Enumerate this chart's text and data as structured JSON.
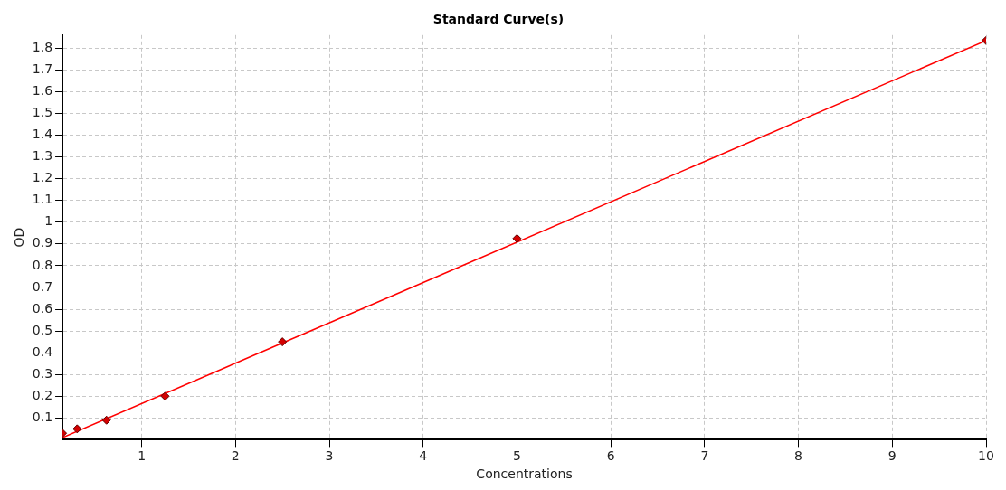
{
  "chart_data": {
    "type": "scatter",
    "title": "Standard Curve(s)",
    "xlabel": "Concentrations",
    "ylabel": "OD",
    "xlim": [
      0.156,
      10
    ],
    "ylim": [
      0,
      1.86
    ],
    "xticks": [
      1,
      2,
      3,
      4,
      5,
      6,
      7,
      8,
      9,
      10
    ],
    "yticks": [
      0.1,
      0.2,
      0.3,
      0.4,
      0.5,
      0.6,
      0.7,
      0.8,
      0.9,
      1,
      1.1,
      1.2,
      1.3,
      1.4,
      1.5,
      1.6,
      1.7,
      1.8
    ],
    "grid": true,
    "legend": false,
    "series": [
      {
        "type": "scatter",
        "marker": "diamond",
        "color": "#d40000",
        "x": [
          0.156,
          0.3125,
          0.625,
          1.25,
          2.5,
          5,
          10
        ],
        "values": [
          0.03,
          0.05,
          0.09,
          0.2,
          0.45,
          0.925,
          1.835
        ]
      },
      {
        "type": "line",
        "color": "#ff0000",
        "x": [
          0.156,
          10
        ],
        "values": [
          0.01,
          1.835
        ],
        "line_style": "solid",
        "marker": "none"
      }
    ]
  }
}
